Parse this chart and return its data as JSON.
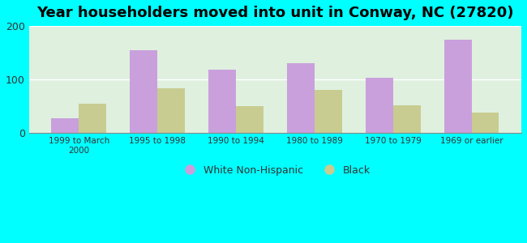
{
  "title": "Year householders moved into unit in Conway, NC (27820)",
  "categories": [
    "1999 to March\n2000",
    "1995 to 1998",
    "1990 to 1994",
    "1980 to 1989",
    "1970 to 1979",
    "1969 or earlier"
  ],
  "white_values": [
    28,
    155,
    118,
    130,
    103,
    175
  ],
  "black_values": [
    55,
    83,
    50,
    80,
    52,
    38
  ],
  "white_color": "#c9a0dc",
  "black_color": "#c8cc90",
  "ylim": [
    0,
    200
  ],
  "yticks": [
    0,
    100,
    200
  ],
  "outer_bg": "#00ffff",
  "plot_bg": "#e8f5e8",
  "title_fontsize": 13,
  "legend_white": "White Non-Hispanic",
  "legend_black": "Black",
  "bar_width": 0.35
}
